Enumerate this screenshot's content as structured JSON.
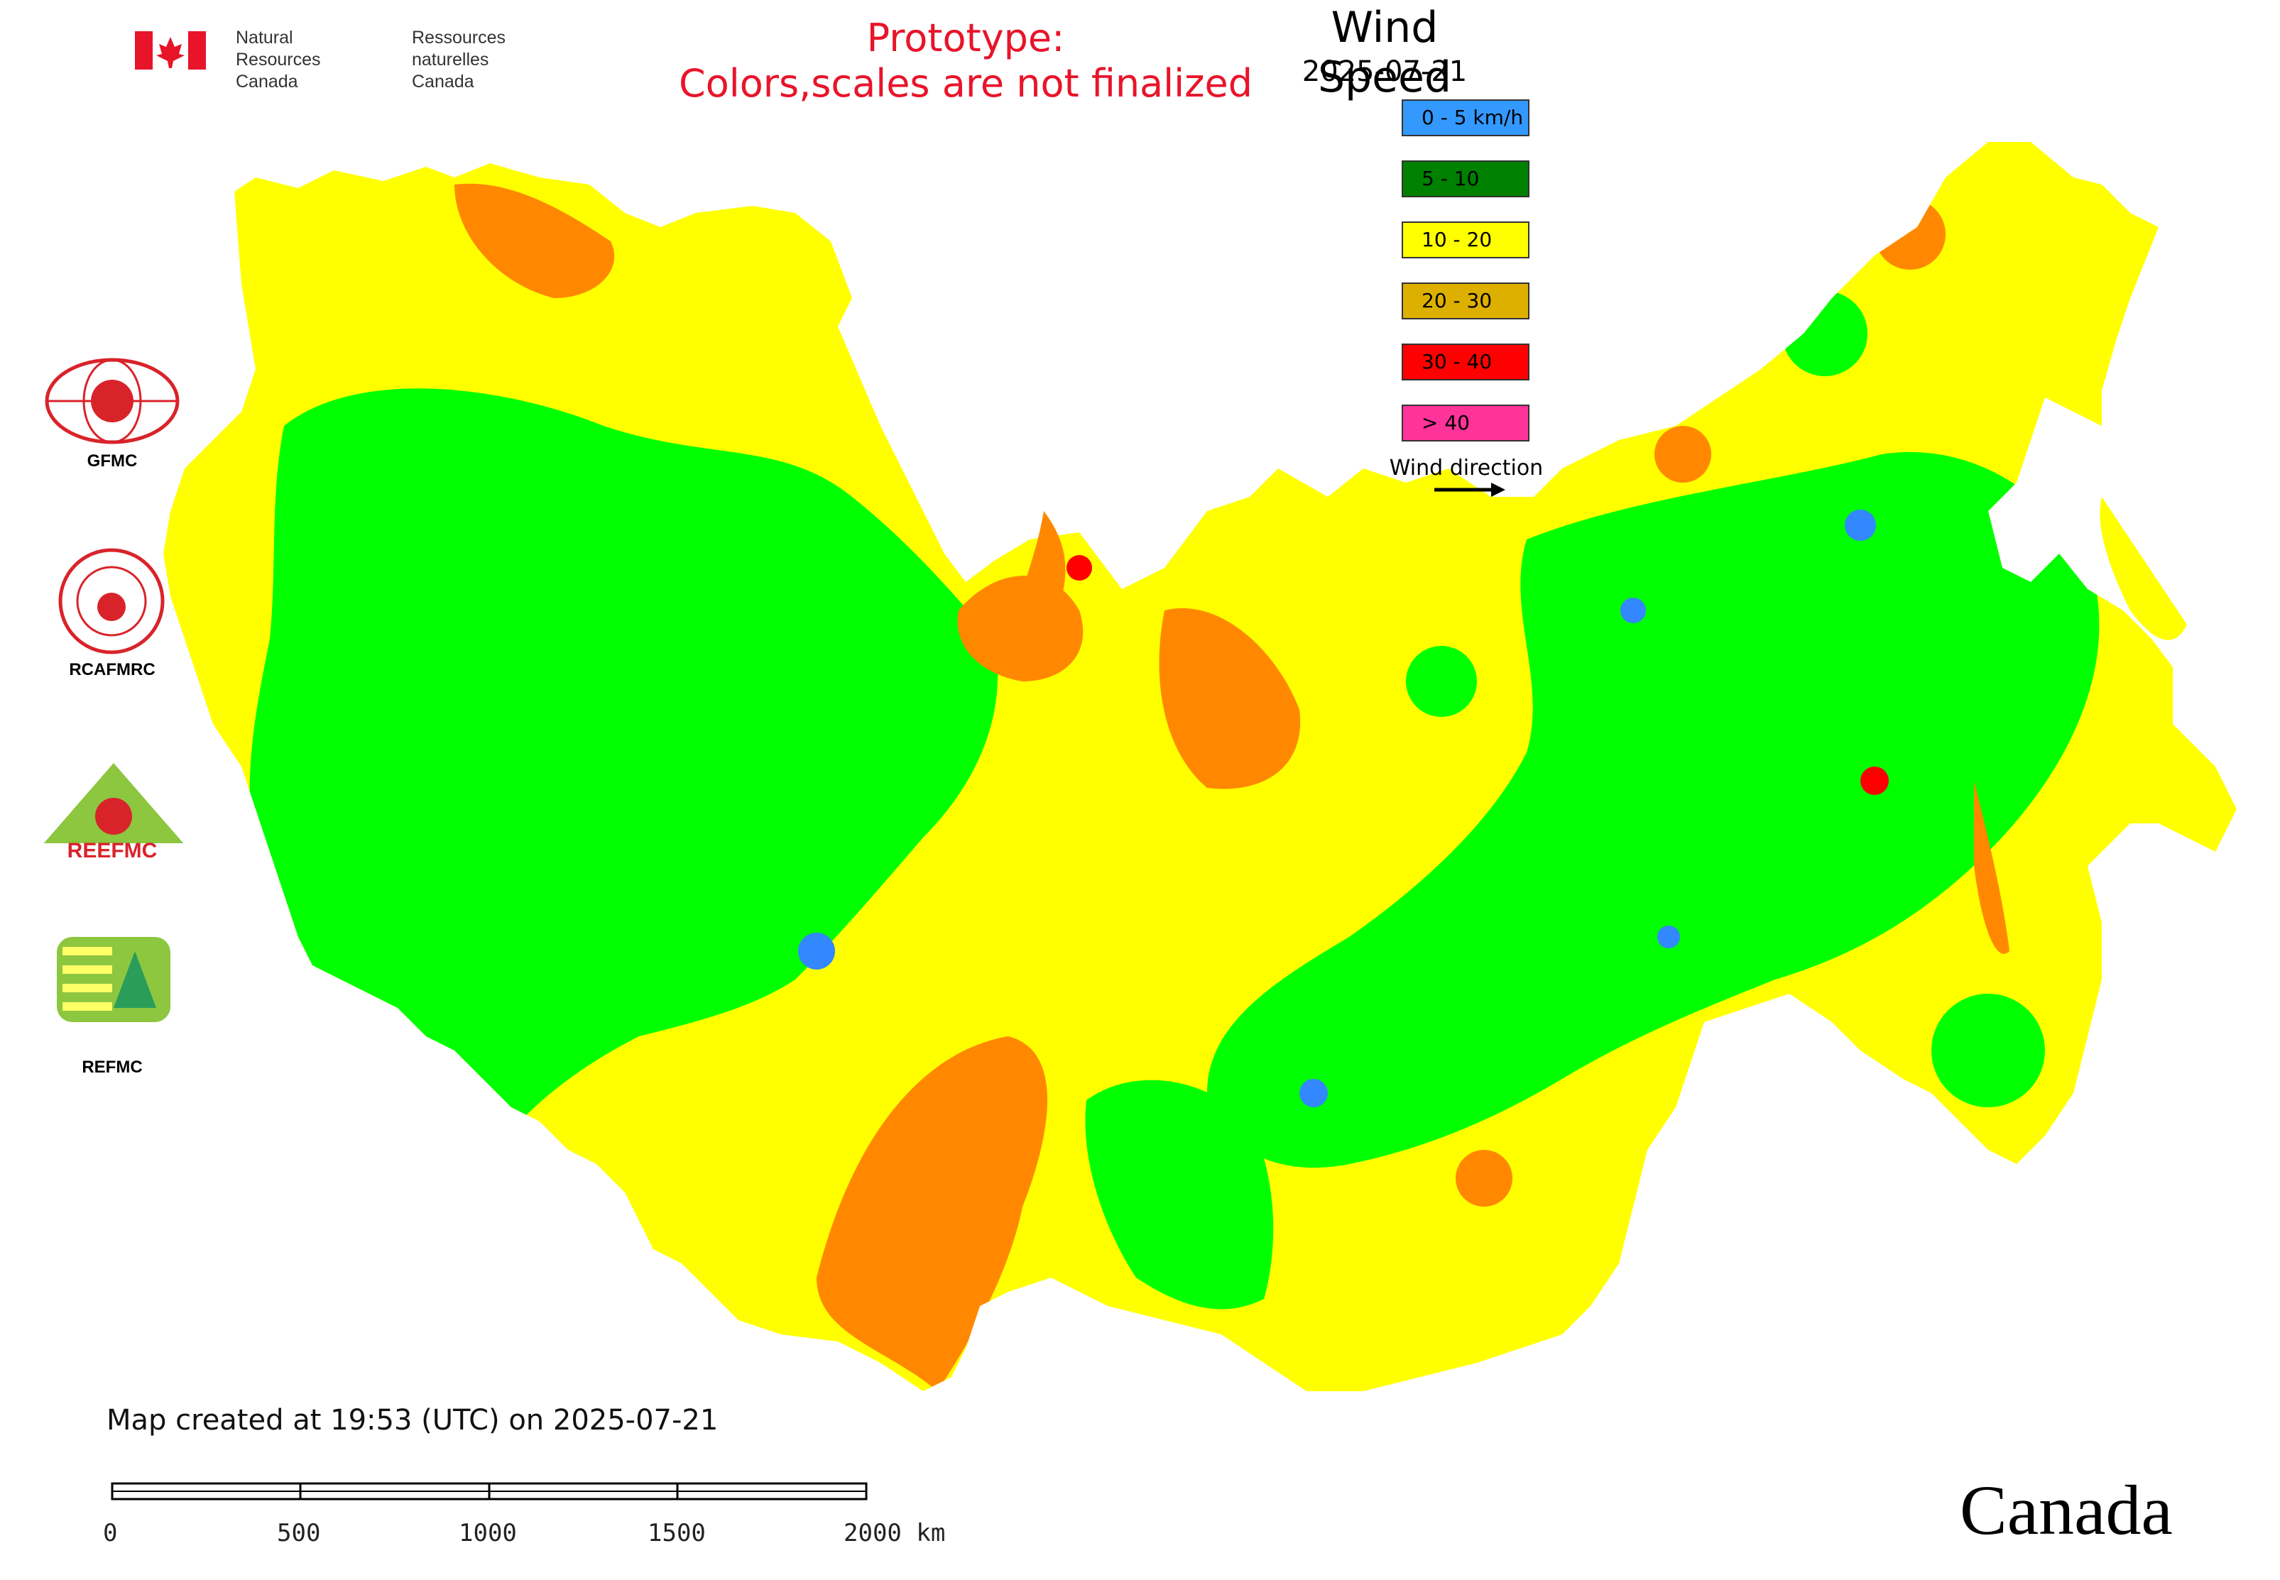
{
  "header": {
    "gov_en_line1": "Natural Resources",
    "gov_en_line2": "Canada",
    "gov_fr_line1": "Ressources naturelles",
    "gov_fr_line2": "Canada",
    "prototype_line1": "Prototype:",
    "prototype_line2": "Colors,scales are not finalized"
  },
  "legend": {
    "title": "Wind Speed",
    "date": "2025-07-21",
    "items": [
      {
        "label": "0 - 5 km/h",
        "color": "#3399ff"
      },
      {
        "label": "5 - 10",
        "color": "#008000"
      },
      {
        "label": "10 - 20",
        "color": "#ffff00"
      },
      {
        "label": "20 - 30",
        "color": "#ddb000"
      },
      {
        "label": "30 - 40",
        "color": "#ff0000"
      },
      {
        "label": "> 40",
        "color": "#ff3399"
      }
    ],
    "wind_direction_label": "Wind direction"
  },
  "map_colors": {
    "calm": "#3388ff",
    "light": "#00ff00",
    "moderate": "#ffff00",
    "strong": "#ff8800",
    "very_strong": "#ff0000",
    "extreme": "#ff00aa"
  },
  "logos": {
    "gfmc": "GFMC",
    "rcafmrc": "RCAFMRC",
    "reefmc": "REEFMC",
    "refmc": "REFMC"
  },
  "footer": {
    "created": "Map created at 19:53 (UTC) on 2025-07-21",
    "scale_labels": [
      "0",
      "500",
      "1000",
      "1500",
      "2000 km"
    ],
    "wordmark": "Canada"
  }
}
